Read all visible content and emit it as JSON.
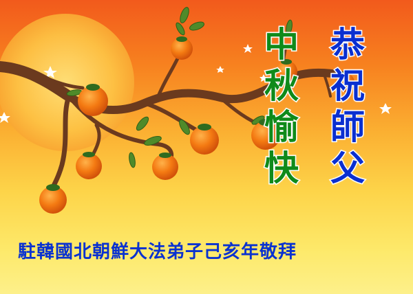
{
  "greeting": {
    "column_left": [
      "中",
      "秋",
      "愉",
      "快"
    ],
    "column_right": [
      "恭",
      "祝",
      "師",
      "父"
    ]
  },
  "signature": "駐韓國北朝鮮大法弟子己亥年敬拜",
  "colors": {
    "sky_top": "#f25a1c",
    "sky_bottom": "#fdf08a",
    "moon": "#fdc244",
    "branch": "#6b3a1e",
    "persimmon": "#f47a12",
    "leaf": "#4f8a2a",
    "text_blue": "#0a2fd0",
    "text_green": "#0f8a1a"
  }
}
